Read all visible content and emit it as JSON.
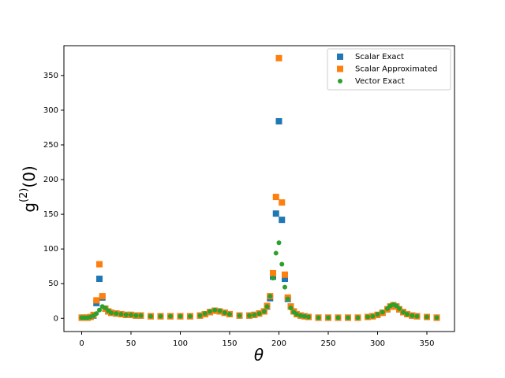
{
  "chart_data": {
    "type": "scatter",
    "xlabel": "θ",
    "ylabel": {
      "base": "g",
      "sup": "(2)",
      "arg": "(0)"
    },
    "x": [
      0,
      3,
      6,
      9,
      12,
      15,
      18,
      21,
      24,
      27,
      30,
      35,
      40,
      45,
      50,
      55,
      60,
      70,
      80,
      90,
      100,
      110,
      120,
      125,
      130,
      135,
      140,
      145,
      150,
      160,
      170,
      175,
      180,
      185,
      188,
      191,
      194,
      197,
      200,
      203,
      206,
      209,
      212,
      215,
      218,
      222,
      226,
      230,
      240,
      250,
      260,
      270,
      280,
      290,
      295,
      300,
      305,
      310,
      313,
      316,
      319,
      322,
      326,
      330,
      335,
      340,
      350,
      360
    ],
    "series": [
      {
        "name": "Scalar Exact",
        "color": "#1f77b4",
        "marker": "square",
        "values": [
          1,
          1,
          1,
          2,
          4,
          22,
          57,
          30,
          14,
          10,
          8,
          7,
          6,
          5,
          5,
          4,
          4,
          3,
          3,
          3,
          3,
          3,
          4,
          6,
          9,
          11,
          10,
          8,
          6,
          4,
          4,
          5,
          7,
          10,
          17,
          29,
          60,
          151,
          284,
          142,
          57,
          28,
          17,
          10,
          6,
          4,
          3,
          2,
          1,
          1,
          1,
          1,
          1,
          2,
          3,
          5,
          8,
          13,
          17,
          19,
          17,
          13,
          9,
          6,
          4,
          3,
          2,
          1
        ]
      },
      {
        "name": "Scalar Approximated",
        "color": "#ff7f0e",
        "marker": "square",
        "values": [
          1,
          1,
          1,
          2,
          5,
          26,
          78,
          32,
          14,
          10,
          8,
          7,
          6,
          5,
          5,
          4,
          4,
          3,
          3,
          3,
          3,
          3,
          4,
          6,
          9,
          11,
          10,
          8,
          6,
          4,
          4,
          5,
          7,
          10,
          18,
          32,
          65,
          175,
          375,
          167,
          63,
          30,
          17,
          10,
          6,
          4,
          3,
          2,
          1,
          1,
          1,
          1,
          1,
          2,
          3,
          5,
          8,
          13,
          17,
          19,
          17,
          13,
          9,
          6,
          4,
          3,
          2,
          1
        ]
      },
      {
        "name": "Vector Exact",
        "color": "#2ca02c",
        "marker": "circle",
        "values": [
          1,
          1,
          1,
          2,
          4,
          7,
          12,
          17,
          15,
          11,
          8,
          7,
          6,
          5,
          5,
          4,
          4,
          3,
          3,
          3,
          3,
          3,
          4,
          7,
          10,
          12,
          11,
          8,
          6,
          4,
          4,
          5,
          7,
          10,
          17,
          32,
          58,
          94,
          109,
          78,
          45,
          28,
          15,
          9,
          6,
          4,
          3,
          2,
          1,
          1,
          1,
          1,
          1,
          2,
          3,
          6,
          9,
          14,
          18,
          20,
          18,
          14,
          9,
          6,
          4,
          3,
          2,
          1
        ]
      }
    ],
    "xlim": [
      -18,
      378
    ],
    "ylim": [
      -19,
      393
    ],
    "xticks": [
      0,
      50,
      100,
      150,
      200,
      250,
      300,
      350
    ],
    "yticks": [
      0,
      50,
      100,
      150,
      200,
      250,
      300,
      350
    ],
    "legend": "upper right"
  }
}
